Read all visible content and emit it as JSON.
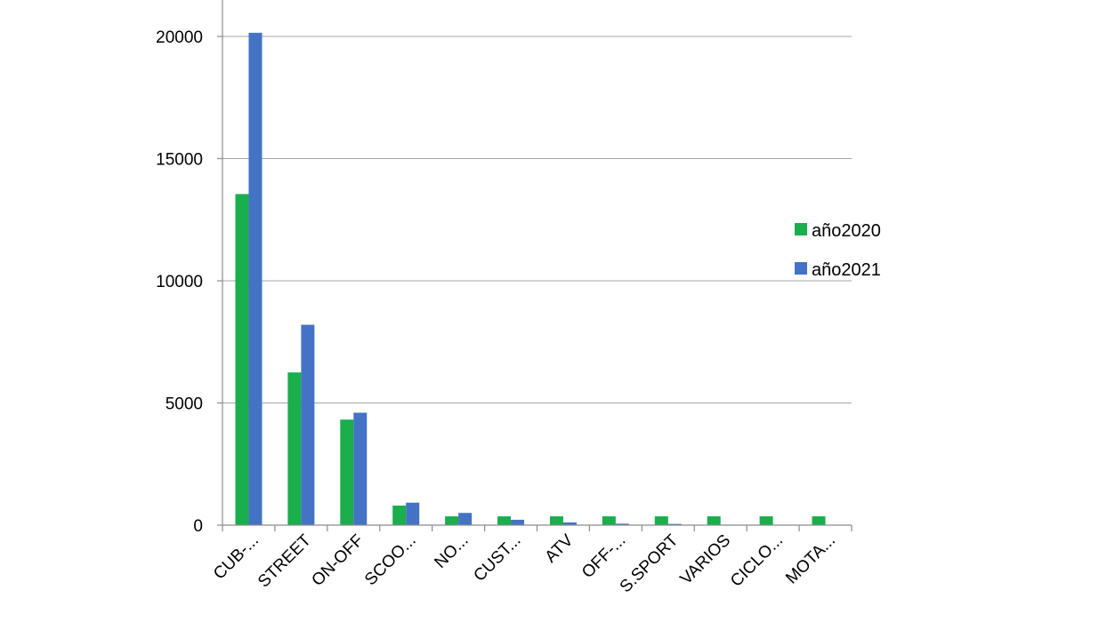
{
  "chart_data": {
    "type": "bar",
    "title": "",
    "xlabel": "",
    "ylabel": "",
    "ylim": [
      0,
      20000
    ],
    "yticks": [
      0,
      5000,
      10000,
      15000,
      20000
    ],
    "grid": true,
    "legend_position": "right",
    "categories": [
      "CUB-...",
      "STREET",
      "ON-OFF",
      "SCOO...",
      "NO...",
      "CUST...",
      "ATV",
      "OFF-...",
      "S.SPORT",
      "VARIOS",
      "CICLO...",
      "MOTA..."
    ],
    "series": [
      {
        "name": "año2020",
        "color": "#1aae4c",
        "values": [
          13550,
          6250,
          4320,
          800,
          360,
          360,
          360,
          360,
          360,
          360,
          360,
          360
        ]
      },
      {
        "name": "año2021",
        "color": "#4472c4",
        "values": [
          20150,
          8200,
          4600,
          920,
          500,
          220,
          110,
          60,
          50,
          20,
          10,
          0
        ]
      }
    ]
  }
}
